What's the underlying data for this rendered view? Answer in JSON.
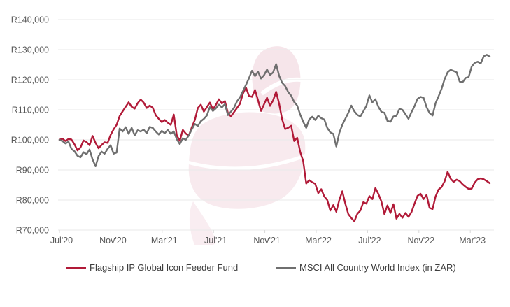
{
  "chart_data": {
    "type": "line",
    "title": "",
    "xlabel": "",
    "ylabel": "",
    "currency": "ZAR",
    "ylim": [
      70000,
      140000
    ],
    "grid": "horizontal",
    "legend_position": "bottom",
    "watermark": "flagship-logo",
    "watermark_color": "#f8eaee",
    "axis_label_color": "#595959",
    "gridline_color": "#e9e9e9",
    "tick_color": "#d9d9d9",
    "y_tick_values": [
      140000,
      130000,
      120000,
      110000,
      100000,
      90000,
      80000,
      70000
    ],
    "y_tick_labels": [
      "R140,000",
      "R130,000",
      "R120,000",
      "R110,000",
      "R100,000",
      "R90,000",
      "R80,000",
      "R70,000"
    ],
    "x_tick_labels": [
      "Jul'20",
      "Nov'20",
      "Mar'21",
      "Jul'21",
      "Nov'21",
      "Mar'22",
      "Jul'22",
      "Nov'22",
      "Mar'23"
    ],
    "series": [
      {
        "name": "Flagship IP Global Icon Feeder Fund",
        "color": "#b11a38",
        "values": [
          100000,
          100400,
          99600,
          100300,
          100100,
          98500,
          96500,
          97500,
          99800,
          99300,
          98200,
          101300,
          99000,
          97200,
          98300,
          99200,
          99000,
          101600,
          103500,
          105000,
          107900,
          109500,
          111000,
          112500,
          111000,
          110400,
          112200,
          113400,
          112400,
          110600,
          111400,
          110700,
          108200,
          107000,
          105900,
          106600,
          105700,
          105000,
          108400,
          101500,
          99700,
          103300,
          102100,
          101400,
          104200,
          106600,
          110600,
          111700,
          109400,
          110900,
          112400,
          110200,
          111600,
          113500,
          112100,
          112900,
          108900,
          107800,
          109200,
          110600,
          112000,
          115400,
          117400,
          114600,
          114300,
          116600,
          113200,
          109600,
          111800,
          114000,
          111300,
          113100,
          116000,
          112000,
          106800,
          103600,
          104000,
          104700,
          99600,
          100700,
          96000,
          92900,
          85500,
          86600,
          85900,
          85400,
          82300,
          83600,
          81200,
          80000,
          76500,
          78300,
          76100,
          80000,
          82900,
          78800,
          75300,
          74000,
          72900,
          75400,
          76500,
          79300,
          78800,
          81300,
          80300,
          84000,
          82000,
          79500,
          75300,
          78200,
          75700,
          78600,
          73800,
          75400,
          74100,
          75700,
          74400,
          76000,
          78800,
          81400,
          82100,
          80300,
          81700,
          77400,
          77000,
          81200,
          83500,
          84300,
          86200,
          89400,
          87100,
          86000,
          86800,
          86300,
          85200,
          84400,
          83700,
          83800,
          85800,
          86900,
          87200,
          86900,
          86300,
          85600
        ]
      },
      {
        "name": "MSCI All Country World Index (in ZAR)",
        "color": "#6f6f6f",
        "values": [
          100000,
          99600,
          98800,
          99400,
          97000,
          96200,
          94700,
          94200,
          95900,
          95200,
          96800,
          93500,
          91200,
          94600,
          96100,
          95400,
          97000,
          98200,
          95400,
          95800,
          103800,
          102800,
          104200,
          102000,
          104000,
          101500,
          103200,
          102800,
          103400,
          102200,
          104300,
          104000,
          102800,
          101800,
          103000,
          102200,
          103300,
          102000,
          102800,
          100200,
          98600,
          100500,
          100000,
          101500,
          103500,
          105300,
          104600,
          106200,
          107000,
          108100,
          110900,
          109600,
          110500,
          111700,
          110800,
          111900,
          108200,
          109400,
          110600,
          112800,
          114100,
          116200,
          118300,
          120500,
          123000,
          121200,
          122700,
          120400,
          121500,
          123400,
          121600,
          122400,
          125200,
          121300,
          119000,
          117900,
          115900,
          114700,
          112600,
          111400,
          108400,
          106000,
          104000,
          106800,
          107700,
          106600,
          108000,
          107200,
          106800,
          104000,
          102500,
          102000,
          97800,
          102300,
          105000,
          107000,
          109000,
          111400,
          109500,
          108300,
          107800,
          109500,
          111300,
          114800,
          112500,
          113500,
          111000,
          109300,
          109000,
          106300,
          106000,
          107800,
          108000,
          110300,
          110000,
          108500,
          107000,
          109200,
          111200,
          113600,
          114300,
          114000,
          110900,
          108900,
          108100,
          112200,
          114500,
          117000,
          120200,
          122500,
          123300,
          122900,
          122500,
          119400,
          119200,
          120600,
          120900,
          124400,
          125600,
          126000,
          125400,
          127800,
          128300,
          127700
        ]
      }
    ]
  }
}
